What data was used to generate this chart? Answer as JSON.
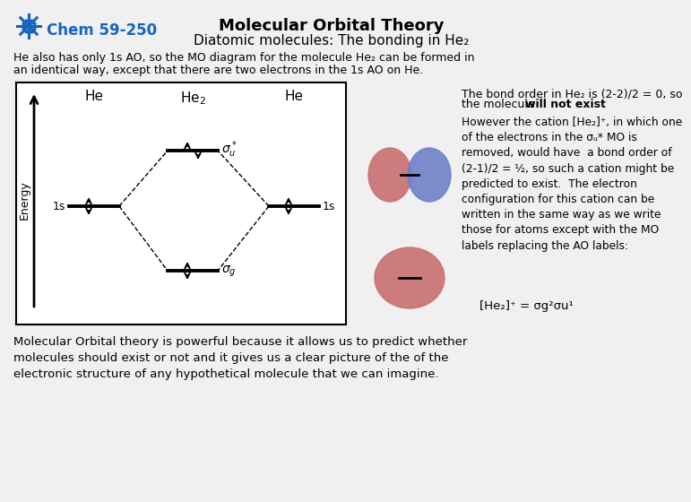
{
  "bg_color": "#f0f0f0",
  "title_line1": "Molecular Orbital Theory",
  "title_line2": "Diatomic molecules: The bonding in He₂",
  "chem_label": "Chem 59-250",
  "header_text1": "He also has only 1s AO, so the MO diagram for the molecule He₂ can be formed in",
  "header_text2": "an identical way, except that there are two electrons in the 1s AO on He.",
  "right_text_line1": "The bond order in He₂ is (2-2)/2 = 0, so",
  "right_text_line2a": "the molecule ",
  "right_text_line2b": "will not exist",
  "right_text_line2c": ".",
  "right_text_mid": "However the cation [He₂]⁺, in which one\nof the electrons in the σᵤ* MO is\nremoved, would have  a bond order of\n(2-1)/2 = ½, so such a cation might be\npredicted to exist.  The electron\nconfiguration for this cation can be\nwritten in the same way as we write\nthose for atoms except with the MO\nlabels replacing the AO labels:",
  "right_text_formula": "[He₂]⁺ = σg²σu¹",
  "bottom_text": "Molecular Orbital theory is powerful because it allows us to predict whether\nmolecules should exist or not and it gives us a clear picture of the of the\nelectronic structure of any hypothetical molecule that we can imagine.",
  "blue_color": "#1565C0",
  "black": "#000000",
  "white": "#ffffff"
}
